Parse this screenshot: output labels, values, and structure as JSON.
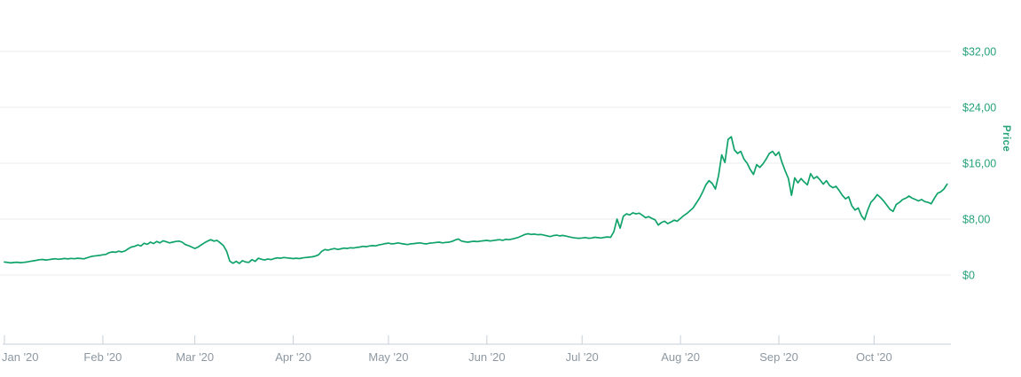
{
  "chart_data": {
    "type": "line",
    "title": "",
    "ylabel": "Price",
    "legend": "none",
    "grid": "horizontal",
    "background": "#ffffff",
    "x_axis": {
      "tick_labels": [
        "Jan '20",
        "Feb '20",
        "Mar '20",
        "Apr '20",
        "May '20",
        "Jun '20",
        "Jul '20",
        "Aug '20",
        "Sep '20",
        "Oct '20"
      ],
      "tick_day_offsets": [
        0,
        31,
        60,
        91,
        121,
        152,
        182,
        213,
        244,
        274
      ],
      "range_days": [
        0,
        300
      ]
    },
    "y_axis": {
      "side": "right",
      "ticks": [
        0,
        8,
        16,
        24,
        32
      ],
      "tick_labels": [
        "$0",
        "$8,00",
        "$16,00",
        "$24,00",
        "$32,00"
      ],
      "ylim": [
        0,
        34
      ],
      "label_color": "#26a27b"
    },
    "series": [
      {
        "name": "Price",
        "color": "#0fa36a",
        "points_day_price": [
          [
            0,
            1.85
          ],
          [
            1,
            1.8
          ],
          [
            2,
            1.73
          ],
          [
            3,
            1.79
          ],
          [
            4,
            1.83
          ],
          [
            5,
            1.77
          ],
          [
            6,
            1.8
          ],
          [
            7,
            1.86
          ],
          [
            8,
            1.94
          ],
          [
            9,
            2.02
          ],
          [
            10,
            2.1
          ],
          [
            11,
            2.18
          ],
          [
            12,
            2.22
          ],
          [
            13,
            2.15
          ],
          [
            14,
            2.2
          ],
          [
            15,
            2.27
          ],
          [
            16,
            2.32
          ],
          [
            17,
            2.25
          ],
          [
            18,
            2.3
          ],
          [
            19,
            2.36
          ],
          [
            20,
            2.3
          ],
          [
            21,
            2.38
          ],
          [
            22,
            2.33
          ],
          [
            23,
            2.4
          ],
          [
            24,
            2.36
          ],
          [
            25,
            2.31
          ],
          [
            26,
            2.45
          ],
          [
            27,
            2.6
          ],
          [
            28,
            2.7
          ],
          [
            29,
            2.75
          ],
          [
            30,
            2.8
          ],
          [
            31,
            2.9
          ],
          [
            32,
            2.95
          ],
          [
            33,
            3.2
          ],
          [
            34,
            3.3
          ],
          [
            35,
            3.25
          ],
          [
            36,
            3.4
          ],
          [
            37,
            3.3
          ],
          [
            38,
            3.45
          ],
          [
            39,
            3.75
          ],
          [
            40,
            4.0
          ],
          [
            41,
            4.1
          ],
          [
            42,
            4.3
          ],
          [
            43,
            4.15
          ],
          [
            44,
            4.55
          ],
          [
            45,
            4.4
          ],
          [
            46,
            4.7
          ],
          [
            47,
            4.5
          ],
          [
            48,
            4.8
          ],
          [
            49,
            4.6
          ],
          [
            50,
            4.9
          ],
          [
            51,
            4.75
          ],
          [
            52,
            4.6
          ],
          [
            53,
            4.7
          ],
          [
            54,
            4.8
          ],
          [
            55,
            4.85
          ],
          [
            56,
            4.7
          ],
          [
            57,
            4.35
          ],
          [
            58,
            4.2
          ],
          [
            59,
            4.0
          ],
          [
            60,
            3.8
          ],
          [
            61,
            4.0
          ],
          [
            62,
            4.3
          ],
          [
            63,
            4.6
          ],
          [
            64,
            4.85
          ],
          [
            65,
            5.05
          ],
          [
            66,
            4.85
          ],
          [
            67,
            4.95
          ],
          [
            68,
            4.6
          ],
          [
            69,
            4.2
          ],
          [
            70,
            3.4
          ],
          [
            71,
            2.0
          ],
          [
            72,
            1.68
          ],
          [
            73,
            1.95
          ],
          [
            74,
            1.65
          ],
          [
            75,
            2.05
          ],
          [
            76,
            1.85
          ],
          [
            77,
            1.8
          ],
          [
            78,
            2.2
          ],
          [
            79,
            1.95
          ],
          [
            80,
            2.4
          ],
          [
            81,
            2.25
          ],
          [
            82,
            2.15
          ],
          [
            83,
            2.3
          ],
          [
            84,
            2.2
          ],
          [
            85,
            2.35
          ],
          [
            86,
            2.45
          ],
          [
            87,
            2.4
          ],
          [
            88,
            2.5
          ],
          [
            89,
            2.45
          ],
          [
            90,
            2.4
          ],
          [
            91,
            2.35
          ],
          [
            92,
            2.4
          ],
          [
            93,
            2.35
          ],
          [
            94,
            2.45
          ],
          [
            95,
            2.5
          ],
          [
            96,
            2.55
          ],
          [
            97,
            2.6
          ],
          [
            98,
            2.7
          ],
          [
            99,
            2.9
          ],
          [
            100,
            3.4
          ],
          [
            101,
            3.65
          ],
          [
            102,
            3.55
          ],
          [
            103,
            3.7
          ],
          [
            104,
            3.78
          ],
          [
            105,
            3.66
          ],
          [
            106,
            3.75
          ],
          [
            107,
            3.85
          ],
          [
            108,
            3.8
          ],
          [
            109,
            3.9
          ],
          [
            110,
            3.86
          ],
          [
            111,
            3.95
          ],
          [
            112,
            4.0
          ],
          [
            113,
            4.1
          ],
          [
            114,
            4.05
          ],
          [
            115,
            4.15
          ],
          [
            116,
            4.2
          ],
          [
            117,
            4.16
          ],
          [
            118,
            4.3
          ],
          [
            119,
            4.4
          ],
          [
            120,
            4.5
          ],
          [
            121,
            4.56
          ],
          [
            122,
            4.46
          ],
          [
            123,
            4.5
          ],
          [
            124,
            4.6
          ],
          [
            125,
            4.5
          ],
          [
            126,
            4.43
          ],
          [
            127,
            4.36
          ],
          [
            128,
            4.46
          ],
          [
            129,
            4.5
          ],
          [
            130,
            4.56
          ],
          [
            131,
            4.6
          ],
          [
            132,
            4.5
          ],
          [
            133,
            4.46
          ],
          [
            134,
            4.56
          ],
          [
            135,
            4.6
          ],
          [
            136,
            4.66
          ],
          [
            137,
            4.7
          ],
          [
            138,
            4.6
          ],
          [
            139,
            4.66
          ],
          [
            140,
            4.7
          ],
          [
            141,
            4.8
          ],
          [
            142,
            5.0
          ],
          [
            143,
            5.15
          ],
          [
            144,
            4.86
          ],
          [
            145,
            4.76
          ],
          [
            146,
            4.7
          ],
          [
            147,
            4.78
          ],
          [
            148,
            4.82
          ],
          [
            149,
            4.78
          ],
          [
            150,
            4.85
          ],
          [
            151,
            4.9
          ],
          [
            152,
            4.95
          ],
          [
            153,
            4.88
          ],
          [
            154,
            4.93
          ],
          [
            155,
            5.0
          ],
          [
            156,
            5.05
          ],
          [
            157,
            4.96
          ],
          [
            158,
            5.1
          ],
          [
            159,
            5.05
          ],
          [
            160,
            5.15
          ],
          [
            161,
            5.26
          ],
          [
            162,
            5.4
          ],
          [
            163,
            5.6
          ],
          [
            164,
            5.8
          ],
          [
            165,
            5.9
          ],
          [
            166,
            5.8
          ],
          [
            167,
            5.86
          ],
          [
            168,
            5.76
          ],
          [
            169,
            5.8
          ],
          [
            170,
            5.7
          ],
          [
            171,
            5.6
          ],
          [
            172,
            5.5
          ],
          [
            173,
            5.65
          ],
          [
            174,
            5.7
          ],
          [
            175,
            5.6
          ],
          [
            176,
            5.66
          ],
          [
            177,
            5.56
          ],
          [
            178,
            5.45
          ],
          [
            179,
            5.36
          ],
          [
            180,
            5.3
          ],
          [
            181,
            5.26
          ],
          [
            182,
            5.3
          ],
          [
            183,
            5.36
          ],
          [
            184,
            5.26
          ],
          [
            185,
            5.3
          ],
          [
            186,
            5.4
          ],
          [
            187,
            5.35
          ],
          [
            188,
            5.3
          ],
          [
            189,
            5.38
          ],
          [
            190,
            5.45
          ],
          [
            191,
            5.4
          ],
          [
            192,
            6.2
          ],
          [
            193,
            8.0
          ],
          [
            194,
            6.7
          ],
          [
            195,
            8.4
          ],
          [
            196,
            8.75
          ],
          [
            197,
            8.6
          ],
          [
            198,
            8.9
          ],
          [
            199,
            8.75
          ],
          [
            200,
            8.85
          ],
          [
            201,
            8.55
          ],
          [
            202,
            8.2
          ],
          [
            203,
            8.35
          ],
          [
            204,
            8.1
          ],
          [
            205,
            7.9
          ],
          [
            206,
            7.15
          ],
          [
            207,
            7.5
          ],
          [
            208,
            7.7
          ],
          [
            209,
            7.35
          ],
          [
            210,
            7.6
          ],
          [
            211,
            7.85
          ],
          [
            212,
            7.7
          ],
          [
            213,
            8.1
          ],
          [
            214,
            8.5
          ],
          [
            215,
            8.8
          ],
          [
            216,
            9.2
          ],
          [
            217,
            9.6
          ],
          [
            218,
            10.3
          ],
          [
            219,
            11.0
          ],
          [
            220,
            11.9
          ],
          [
            221,
            12.9
          ],
          [
            222,
            13.5
          ],
          [
            223,
            13.1
          ],
          [
            224,
            12.3
          ],
          [
            225,
            14.2
          ],
          [
            226,
            17.2
          ],
          [
            227,
            16.1
          ],
          [
            228,
            19.4
          ],
          [
            229,
            19.8
          ],
          [
            230,
            17.9
          ],
          [
            231,
            17.4
          ],
          [
            232,
            17.7
          ],
          [
            233,
            16.6
          ],
          [
            234,
            16.0
          ],
          [
            235,
            15.1
          ],
          [
            236,
            14.4
          ],
          [
            237,
            15.8
          ],
          [
            238,
            15.4
          ],
          [
            239,
            15.9
          ],
          [
            240,
            16.6
          ],
          [
            241,
            17.4
          ],
          [
            242,
            17.7
          ],
          [
            243,
            17.1
          ],
          [
            244,
            17.6
          ],
          [
            245,
            16.1
          ],
          [
            246,
            14.9
          ],
          [
            247,
            13.8
          ],
          [
            248,
            11.4
          ],
          [
            249,
            13.9
          ],
          [
            250,
            13.2
          ],
          [
            251,
            13.8
          ],
          [
            252,
            13.3
          ],
          [
            253,
            12.9
          ],
          [
            254,
            14.5
          ],
          [
            255,
            13.8
          ],
          [
            256,
            14.1
          ],
          [
            257,
            13.6
          ],
          [
            258,
            13.0
          ],
          [
            259,
            13.5
          ],
          [
            260,
            12.8
          ],
          [
            261,
            12.5
          ],
          [
            262,
            12.7
          ],
          [
            263,
            12.1
          ],
          [
            264,
            11.4
          ],
          [
            265,
            10.9
          ],
          [
            266,
            11.2
          ],
          [
            267,
            9.9
          ],
          [
            268,
            9.3
          ],
          [
            269,
            9.6
          ],
          [
            270,
            8.5
          ],
          [
            271,
            7.9
          ],
          [
            272,
            9.3
          ],
          [
            273,
            10.4
          ],
          [
            274,
            10.9
          ],
          [
            275,
            11.5
          ],
          [
            276,
            11.1
          ],
          [
            277,
            10.6
          ],
          [
            278,
            10.0
          ],
          [
            279,
            9.4
          ],
          [
            280,
            9.1
          ],
          [
            281,
            10.1
          ],
          [
            282,
            10.4
          ],
          [
            283,
            10.8
          ],
          [
            284,
            11.0
          ],
          [
            285,
            11.3
          ],
          [
            286,
            11.0
          ],
          [
            287,
            10.8
          ],
          [
            288,
            10.6
          ],
          [
            289,
            10.8
          ],
          [
            290,
            10.5
          ],
          [
            291,
            10.4
          ],
          [
            292,
            10.2
          ],
          [
            293,
            11.0
          ],
          [
            294,
            11.7
          ],
          [
            295,
            11.9
          ],
          [
            296,
            12.3
          ],
          [
            297,
            13.0
          ]
        ]
      }
    ]
  }
}
